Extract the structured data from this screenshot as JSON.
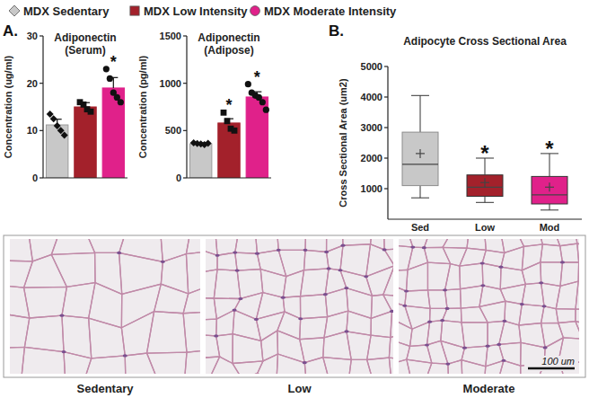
{
  "figure": {
    "legend": [
      {
        "label": "MDX Sedentary",
        "color": "#c8c8c8",
        "marker": "diamond"
      },
      {
        "label": "MDX Low Intensity",
        "color": "#a3212b",
        "marker": "square"
      },
      {
        "label": "MDX Moderate Intensity",
        "color": "#e0218a",
        "marker": "circle"
      }
    ],
    "panel_labels": [
      "A.",
      "B."
    ],
    "micrographs": {
      "captions": [
        "Sedentary",
        "Low",
        "Moderate"
      ],
      "scale_bar": "100 um"
    }
  },
  "chart_data": [
    {
      "type": "bar",
      "title": "Adiponectin",
      "subtitle": "(Serum)",
      "y_label": "Concentration (ug/ml)",
      "categories": [
        null,
        null,
        null
      ],
      "values": [
        11.2,
        15,
        19
      ],
      "errors": [
        1.2,
        0.9,
        2.2
      ],
      "points": [
        [
          13.5,
          12.5,
          11,
          10,
          9
        ],
        [
          16,
          15.5,
          14.5,
          14
        ],
        [
          23,
          21,
          18,
          17,
          16
        ]
      ],
      "colors": [
        "#c8c8c8",
        "#a3212b",
        "#e0218a"
      ],
      "significance": [
        null,
        null,
        "*"
      ],
      "ylim": [
        0,
        30
      ],
      "yticks": [
        0,
        10,
        20,
        30
      ]
    },
    {
      "type": "bar",
      "title": "Adiponectin",
      "subtitle": "(Adipose)",
      "y_label": "Concentration (pg/ml)",
      "categories": [
        null,
        null,
        null
      ],
      "values": [
        360,
        580,
        855
      ],
      "errors": [
        10,
        45,
        55
      ],
      "points": [
        [
          370,
          362,
          358,
          352,
          365
        ],
        [
          690,
          600,
          520,
          500
        ],
        [
          990,
          900,
          870,
          850,
          800,
          720
        ]
      ],
      "colors": [
        "#c8c8c8",
        "#a3212b",
        "#e0218a"
      ],
      "significance": [
        null,
        "*",
        "*"
      ],
      "ylim": [
        0,
        1500
      ],
      "yticks": [
        0,
        500,
        1000,
        1500
      ]
    },
    {
      "type": "box",
      "title": "Adipocyte Cross Sectional Area",
      "y_label": "Cross Sectional Area (um2)",
      "categories": [
        "Sed",
        "Low",
        "Mod"
      ],
      "boxes": [
        {
          "min": 700,
          "q1": 1100,
          "median": 1800,
          "q3": 2850,
          "max": 4050,
          "mean": 2150
        },
        {
          "min": 550,
          "q1": 750,
          "median": 1050,
          "q3": 1450,
          "max": 2000,
          "mean": 1200
        },
        {
          "min": 300,
          "q1": 500,
          "median": 800,
          "q3": 1400,
          "max": 2150,
          "mean": 1050
        }
      ],
      "colors": [
        "#c8c8c8",
        "#a3212b",
        "#e0218a"
      ],
      "significance": [
        null,
        "*",
        "*"
      ],
      "ylim": [
        0,
        5000
      ],
      "yticks": [
        1000,
        2000,
        3000,
        4000,
        5000
      ]
    }
  ]
}
